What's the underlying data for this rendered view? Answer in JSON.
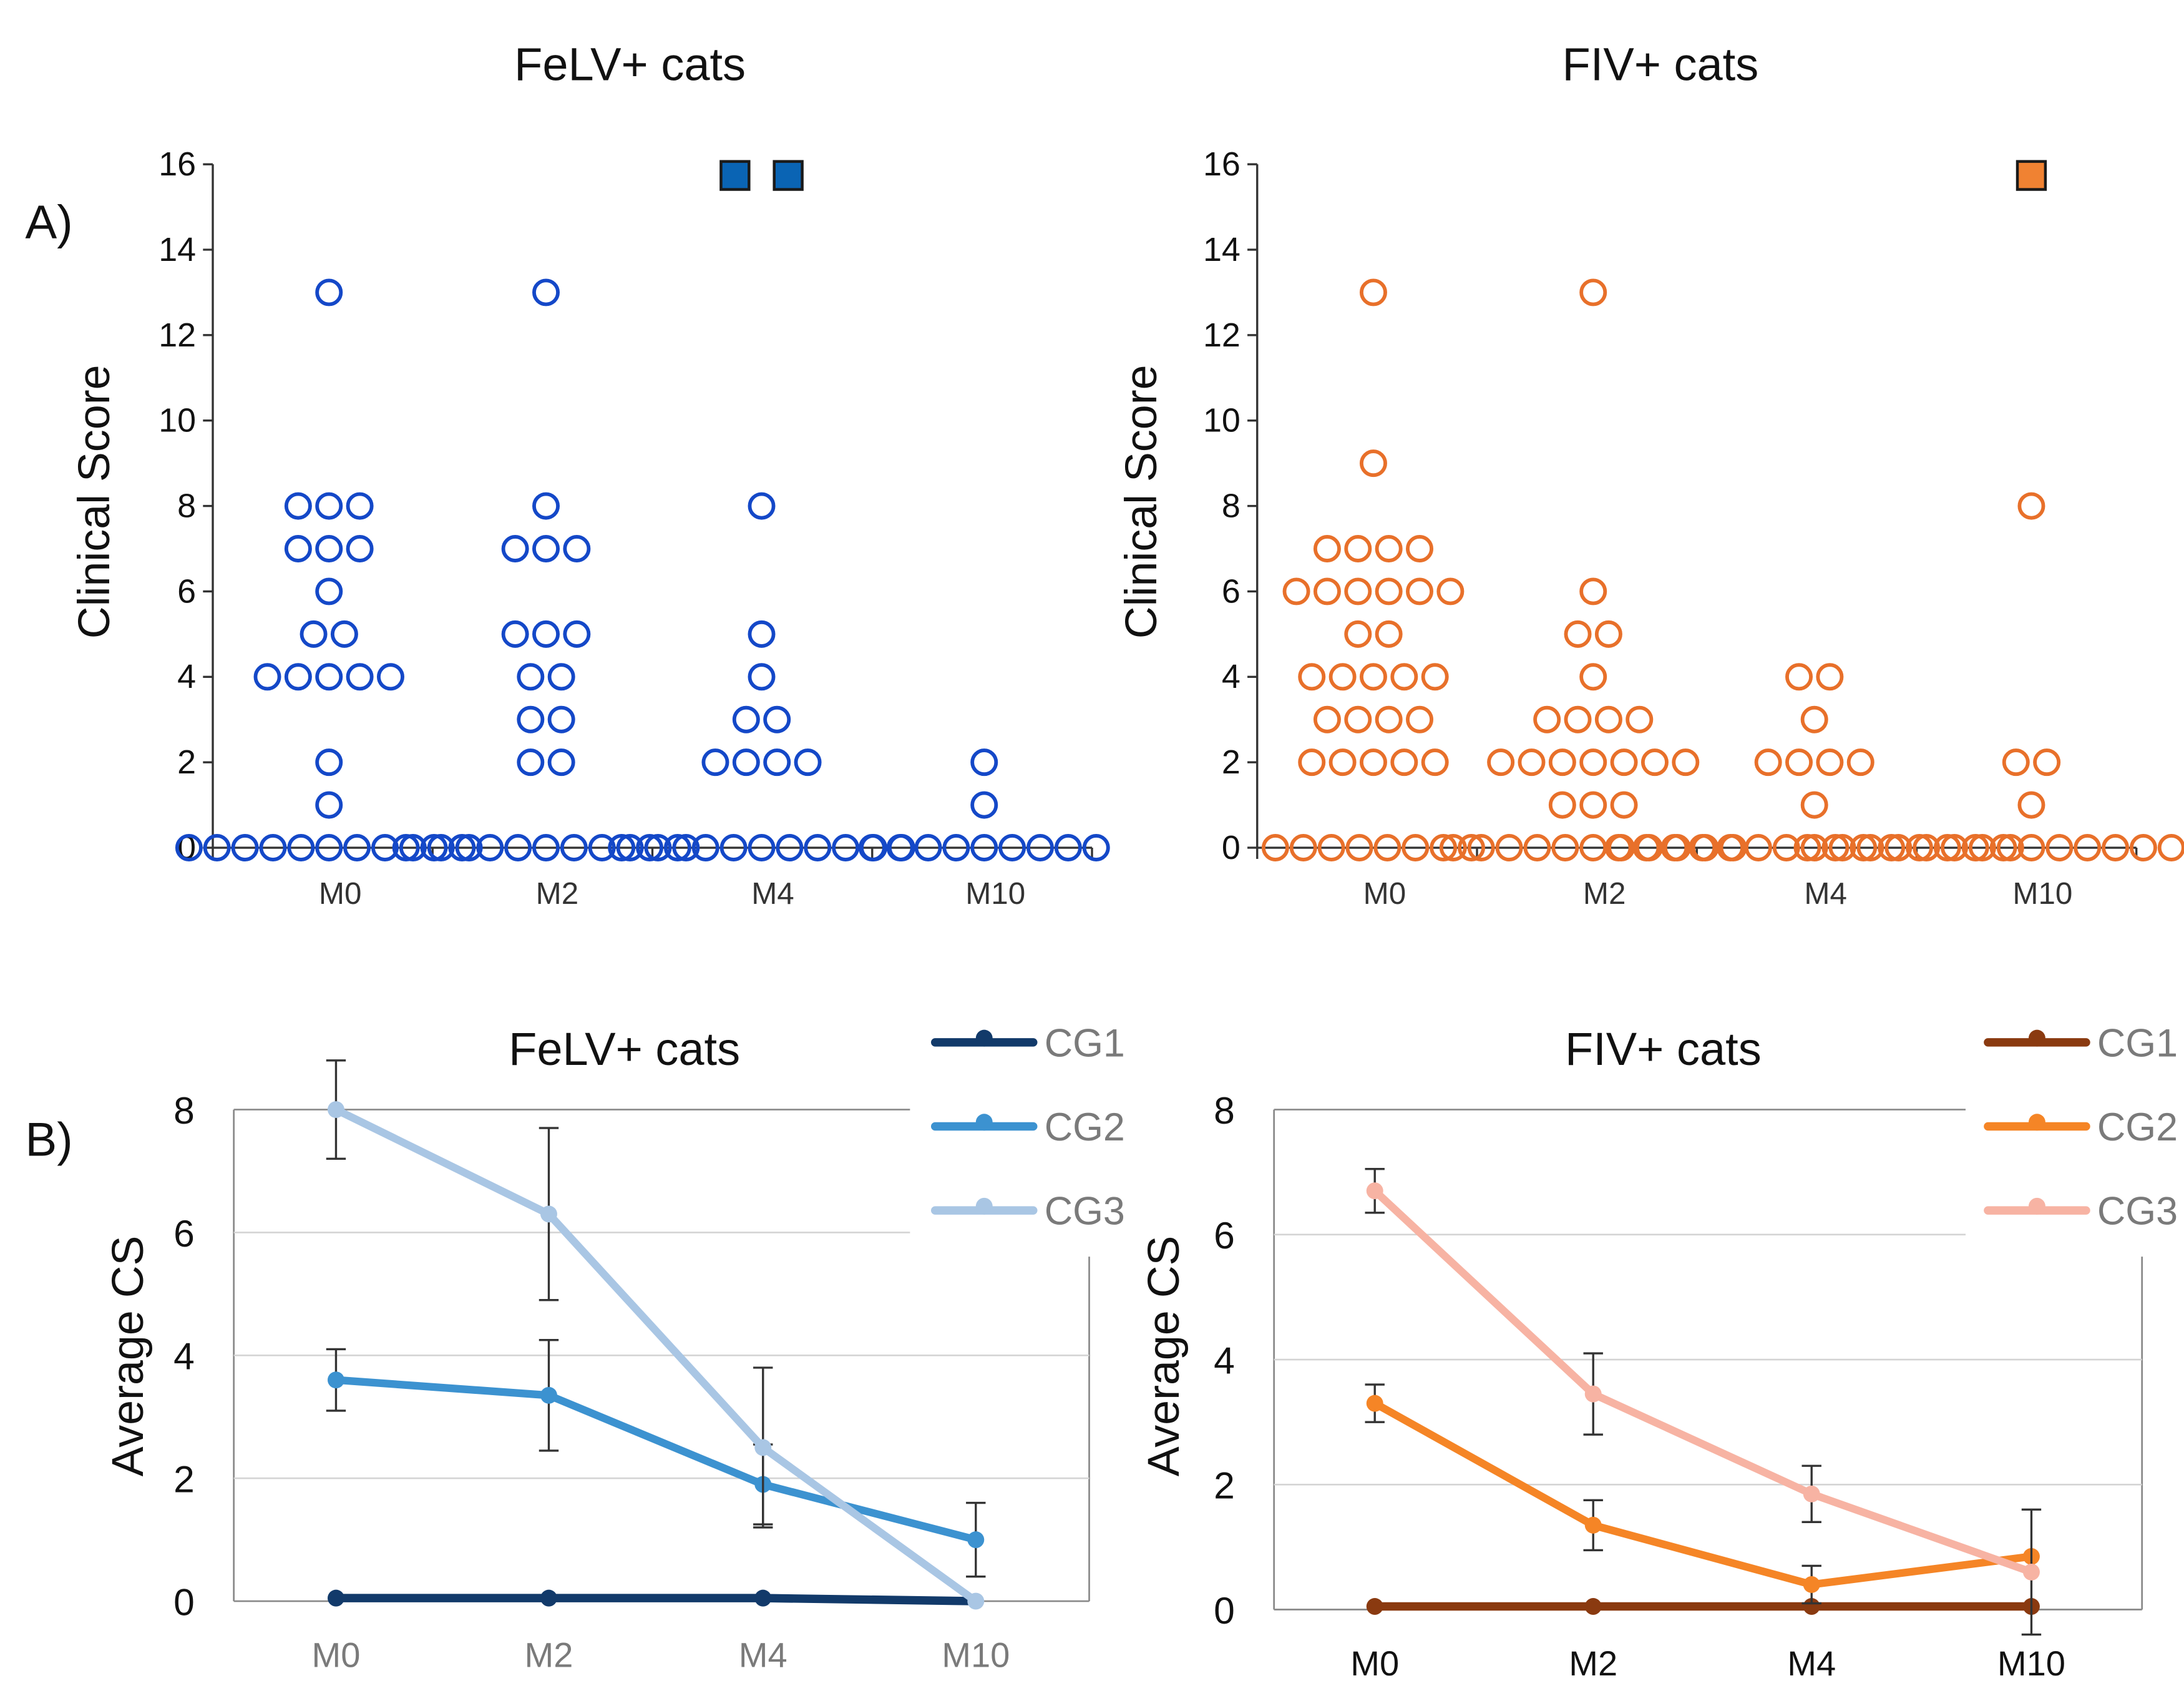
{
  "panels": {
    "a_label": "A)",
    "b_label": "B)"
  },
  "colors": {
    "felv_dot": "#1448c8",
    "fiv_dot": "#e8702a",
    "felv_square": "#0a64b4",
    "fiv_square": "#f08232",
    "felv_cg1": "#123a6a",
    "felv_cg2": "#3c92d0",
    "felv_cg3": "#a9c6e4",
    "fiv_cg1": "#8a3a10",
    "fiv_cg2": "#f58526",
    "fiv_cg3": "#f7b3a3",
    "axis": "#333333",
    "grid": "#d4d4d4",
    "errorbar": "#333333",
    "text": "#111111",
    "muted_text": "#7a7a7a"
  },
  "chart_data": [
    {
      "id": "felv-dot",
      "type": "scatter",
      "title": "FeLV+ cats",
      "ylabel": "Clinical Score",
      "xlabel": "",
      "categories": [
        "M0",
        "M2",
        "M4",
        "M10"
      ],
      "ylim": [
        0,
        16
      ],
      "yticks": [
        0,
        2,
        4,
        6,
        8,
        10,
        12,
        14,
        16
      ],
      "marker": "open-circle",
      "groups": [
        {
          "label": "M0",
          "rows": [
            [
              0,
              11
            ],
            [
              1,
              1
            ],
            [
              2,
              1
            ],
            [
              4,
              5
            ],
            [
              5,
              2
            ],
            [
              6,
              1
            ],
            [
              7,
              3
            ],
            [
              8,
              3
            ],
            [
              13,
              1
            ]
          ]
        },
        {
          "label": "M2",
          "rows": [
            [
              0,
              11
            ],
            [
              2,
              2
            ],
            [
              3,
              2
            ],
            [
              4,
              2
            ],
            [
              5,
              3
            ],
            [
              7,
              3
            ],
            [
              8,
              1
            ],
            [
              13,
              1
            ]
          ]
        },
        {
          "label": "M4",
          "rows": [
            [
              0,
              11
            ],
            [
              2,
              4
            ],
            [
              3,
              2
            ],
            [
              4,
              1
            ],
            [
              5,
              1
            ],
            [
              8,
              1
            ]
          ]
        },
        {
          "label": "M10",
          "rows": [
            [
              0,
              9
            ],
            [
              1,
              1
            ],
            [
              2,
              1
            ]
          ]
        }
      ],
      "outliers": [
        {
          "category": "M4",
          "value": 16,
          "count": 2,
          "marker": "filled-square"
        }
      ]
    },
    {
      "id": "fiv-dot",
      "type": "scatter",
      "title": "FIV+ cats",
      "ylabel": "Clinical Score",
      "xlabel": "",
      "categories": [
        "M0",
        "M2",
        "M4",
        "M10"
      ],
      "ylim": [
        0,
        16
      ],
      "yticks": [
        0,
        2,
        4,
        6,
        8,
        10,
        12,
        14,
        16
      ],
      "marker": "open-circle",
      "groups": [
        {
          "label": "M0",
          "rows": [
            [
              0,
              8
            ],
            [
              2,
              5
            ],
            [
              3,
              4
            ],
            [
              4,
              5
            ],
            [
              5,
              2
            ],
            [
              6,
              6
            ],
            [
              7,
              4
            ],
            [
              9,
              1
            ],
            [
              13,
              1
            ]
          ]
        },
        {
          "label": "M2",
          "rows": [
            [
              0,
              11
            ],
            [
              1,
              3
            ],
            [
              2,
              7
            ],
            [
              3,
              4
            ],
            [
              4,
              1
            ],
            [
              5,
              2
            ],
            [
              6,
              1
            ],
            [
              13,
              1
            ]
          ]
        },
        {
          "label": "M4",
          "rows": [
            [
              0,
              15
            ],
            [
              1,
              1
            ],
            [
              2,
              4
            ],
            [
              3,
              1
            ],
            [
              4,
              2
            ]
          ]
        },
        {
          "label": "M10",
          "rows": [
            [
              0,
              17
            ],
            [
              1,
              1
            ],
            [
              2,
              2
            ],
            [
              8,
              1
            ]
          ]
        }
      ],
      "outliers": [
        {
          "category": "M10",
          "value": 16,
          "count": 1,
          "marker": "filled-square"
        }
      ]
    },
    {
      "id": "felv-line",
      "type": "line",
      "title": "FeLV+ cats",
      "ylabel": "Average CS",
      "xlabel": "",
      "categories": [
        "M0",
        "M2",
        "M4",
        "M10"
      ],
      "ylim": [
        0,
        8
      ],
      "yticks": [
        0,
        2,
        4,
        6,
        8
      ],
      "grid": true,
      "legend": "top-right",
      "series": [
        {
          "name": "CG1",
          "color_key": "felv_cg1",
          "values": [
            0.05,
            0.05,
            0.05,
            0.0
          ],
          "errors": [
            null,
            null,
            null,
            null
          ],
          "markers": [
            true,
            true,
            true,
            false
          ]
        },
        {
          "name": "CG2",
          "color_key": "felv_cg2",
          "values": [
            3.6,
            3.35,
            1.9,
            1.0
          ],
          "errors": [
            0.5,
            0.9,
            0.65,
            0.6
          ],
          "markers": [
            true,
            true,
            true,
            true
          ]
        },
        {
          "name": "CG3",
          "color_key": "felv_cg3",
          "values": [
            8.0,
            6.3,
            2.5,
            0.0
          ],
          "errors": [
            0.8,
            1.4,
            1.3,
            null
          ],
          "markers": [
            true,
            true,
            true,
            true
          ]
        }
      ]
    },
    {
      "id": "fiv-line",
      "type": "line",
      "title": "FIV+ cats",
      "ylabel": "Average CS",
      "xlabel": "",
      "categories": [
        "M0",
        "M2",
        "M4",
        "M10"
      ],
      "ylim": [
        0,
        8
      ],
      "yticks": [
        0,
        2,
        4,
        6,
        8
      ],
      "grid": true,
      "legend": "top-right",
      "series": [
        {
          "name": "CG1",
          "color_key": "fiv_cg1",
          "values": [
            0.05,
            0.05,
            0.05,
            0.05
          ],
          "errors": [
            null,
            null,
            null,
            null
          ],
          "markers": [
            true,
            true,
            true,
            true
          ]
        },
        {
          "name": "CG2",
          "color_key": "fiv_cg2",
          "values": [
            3.3,
            1.35,
            0.4,
            0.85
          ],
          "errors": [
            0.3,
            0.4,
            0.3,
            null
          ],
          "markers": [
            true,
            true,
            true,
            true
          ]
        },
        {
          "name": "CG3",
          "color_key": "fiv_cg3",
          "values": [
            6.7,
            3.45,
            1.85,
            0.6
          ],
          "errors": [
            0.35,
            0.65,
            0.45,
            1.0
          ],
          "markers": [
            true,
            true,
            true,
            true
          ]
        }
      ]
    }
  ]
}
